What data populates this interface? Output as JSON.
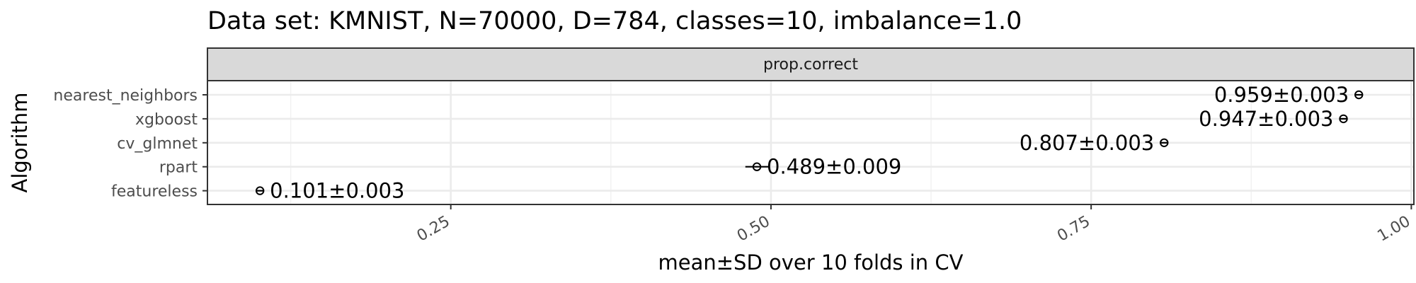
{
  "chart_data": {
    "type": "scatter",
    "title": "Data set: KMNIST, N=70000, D=784, classes=10, imbalance=1.0",
    "facet_label": "prop.correct",
    "xlabel": "mean±SD over 10 folds in CV",
    "ylabel": "Algorithm",
    "xlim": [
      0.06,
      1.002
    ],
    "x_ticks": [
      0.25,
      0.5,
      0.75,
      1.0
    ],
    "x_tick_labels": [
      "0.25",
      "0.50",
      "0.75",
      "1.00"
    ],
    "grid": true,
    "legend": "none",
    "categories": [
      "nearest_neighbors",
      "xgboost",
      "cv_glmnet",
      "rpart",
      "featureless"
    ],
    "points": [
      {
        "algorithm": "nearest_neighbors",
        "mean": 0.959,
        "sd": 0.003,
        "label": "0.959±0.003"
      },
      {
        "algorithm": "xgboost",
        "mean": 0.947,
        "sd": 0.003,
        "label": "0.947±0.003"
      },
      {
        "algorithm": "cv_glmnet",
        "mean": 0.807,
        "sd": 0.003,
        "label": "0.807±0.003"
      },
      {
        "algorithm": "rpart",
        "mean": 0.489,
        "sd": 0.009,
        "label": "0.489±0.009"
      },
      {
        "algorithm": "featureless",
        "mean": 0.101,
        "sd": 0.003,
        "label": "0.101±0.003"
      }
    ],
    "colors": {
      "panel_border": "#333333",
      "strip_fill": "#d9d9d9",
      "grid_major": "#ebebeb",
      "grid_minor": "#f2f2f2",
      "point": "#000000"
    }
  }
}
